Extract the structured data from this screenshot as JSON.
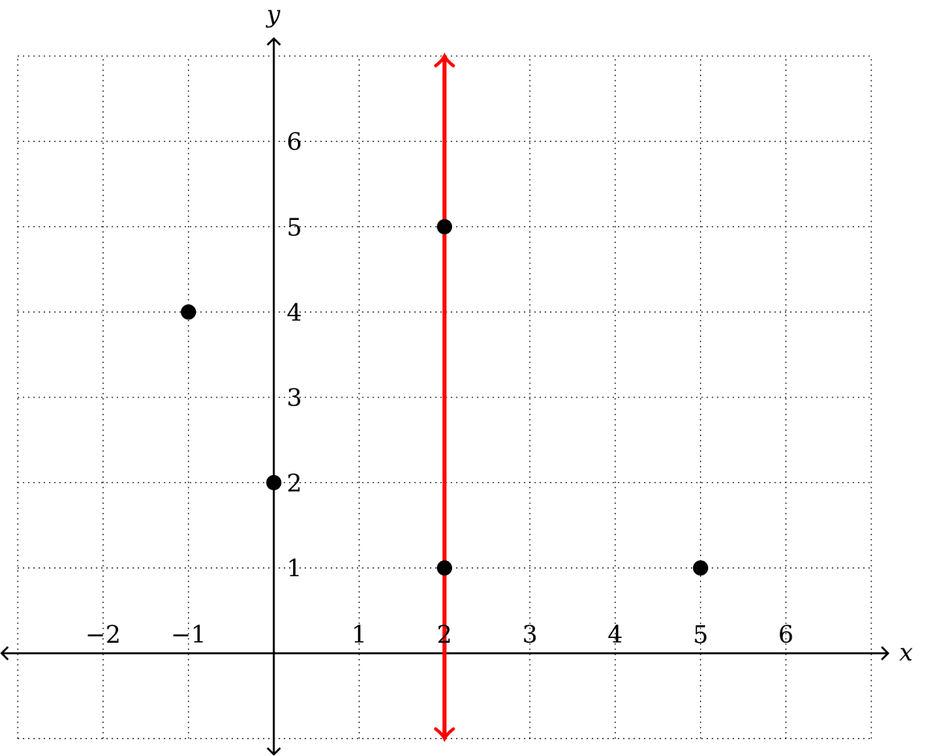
{
  "chart_data": {
    "type": "scatter",
    "xlabel": "x",
    "ylabel": "y",
    "xlim": [
      -3,
      7
    ],
    "ylim": [
      -1,
      7
    ],
    "grid": true,
    "x_tick_labels": [
      {
        "value": -2,
        "label": "−2"
      },
      {
        "value": -1,
        "label": "−1"
      },
      {
        "value": 1,
        "label": "1"
      },
      {
        "value": 2,
        "label": "2"
      },
      {
        "value": 3,
        "label": "3"
      },
      {
        "value": 4,
        "label": "4"
      },
      {
        "value": 5,
        "label": "5"
      },
      {
        "value": 6,
        "label": "6"
      }
    ],
    "y_tick_labels": [
      {
        "value": 1,
        "label": "1"
      },
      {
        "value": 2,
        "label": "2"
      },
      {
        "value": 3,
        "label": "3"
      },
      {
        "value": 4,
        "label": "4"
      },
      {
        "value": 5,
        "label": "5"
      },
      {
        "value": 6,
        "label": "6"
      }
    ],
    "points": [
      {
        "x": -1,
        "y": 4
      },
      {
        "x": 0,
        "y": 2
      },
      {
        "x": 2,
        "y": 5
      },
      {
        "x": 2,
        "y": 1
      },
      {
        "x": 5,
        "y": 1
      }
    ],
    "vertical_line": {
      "x": 2,
      "color": "#ff0000",
      "arrows": "both"
    },
    "point_color": "#000000"
  }
}
